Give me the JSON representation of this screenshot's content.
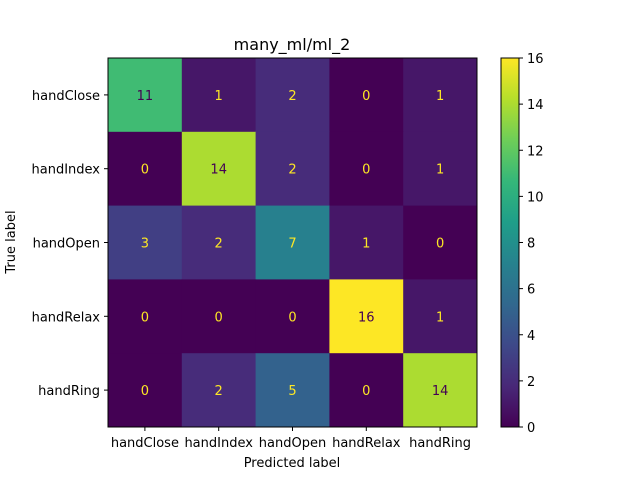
{
  "chart_data": {
    "type": "heatmap",
    "title": "many_ml/ml_2",
    "xlabel": "Predicted label",
    "ylabel": "True label",
    "x_categories": [
      "handClose",
      "handIndex",
      "handOpen",
      "handRelax",
      "handRing"
    ],
    "y_categories": [
      "handClose",
      "handIndex",
      "handOpen",
      "handRelax",
      "handRing"
    ],
    "values": [
      [
        11,
        1,
        2,
        0,
        1
      ],
      [
        0,
        14,
        2,
        0,
        1
      ],
      [
        3,
        2,
        7,
        1,
        0
      ],
      [
        0,
        0,
        0,
        16,
        1
      ],
      [
        0,
        2,
        5,
        0,
        14
      ]
    ],
    "colorbar": {
      "min": 0,
      "max": 16,
      "ticks": [
        "0",
        "2",
        "4",
        "6",
        "8",
        "10",
        "12",
        "14",
        "16"
      ]
    },
    "colormap": "viridis"
  }
}
